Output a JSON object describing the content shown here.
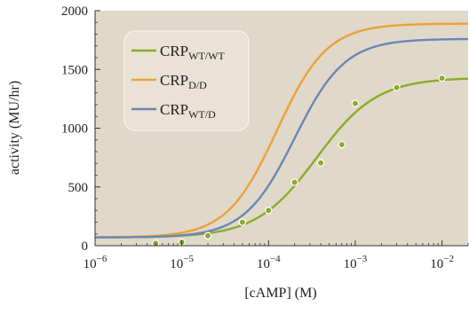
{
  "chart_data": {
    "type": "line",
    "xlabel": "[cAMP] (M)",
    "ylabel": "activity (MU/hr)",
    "x_scale": "log",
    "xlim": [
      1e-06,
      0.02
    ],
    "ylim": [
      0,
      2000
    ],
    "x_ticks": [
      1e-06,
      1e-05,
      0.0001,
      0.001,
      0.01
    ],
    "x_tick_labels": [
      {
        "base": "10",
        "exp": "−6"
      },
      {
        "base": "10",
        "exp": "−5"
      },
      {
        "base": "10",
        "exp": "−4"
      },
      {
        "base": "10",
        "exp": "−3"
      },
      {
        "base": "10",
        "exp": "−2"
      }
    ],
    "y_ticks": [
      0,
      500,
      1000,
      1500,
      2000
    ],
    "y_tick_labels": [
      "0",
      "500",
      "1000",
      "1500",
      "2000"
    ],
    "grid": false,
    "background": "#e0d8c8",
    "legend_position": "top-left",
    "series": [
      {
        "name_base": "CRP",
        "name_sub": "WT/WT",
        "color": "#8aac2c",
        "curve": {
          "bottom": 70,
          "top": 1430,
          "ec50": 0.00036,
          "hill": 1.25
        },
        "points": [
          {
            "x": 5e-06,
            "y": 20
          },
          {
            "x": 1e-05,
            "y": 30
          },
          {
            "x": 2e-05,
            "y": 85
          },
          {
            "x": 5e-05,
            "y": 200
          },
          {
            "x": 0.0001,
            "y": 300
          },
          {
            "x": 0.0002,
            "y": 540
          },
          {
            "x": 0.0004,
            "y": 705
          },
          {
            "x": 0.0007,
            "y": 860
          },
          {
            "x": 0.001,
            "y": 1210
          },
          {
            "x": 0.003,
            "y": 1345
          },
          {
            "x": 0.01,
            "y": 1425
          }
        ]
      },
      {
        "name_base": "CRP",
        "name_sub": "D/D",
        "color": "#e8a23a",
        "curve": {
          "bottom": 70,
          "top": 1890,
          "ec50": 0.000125,
          "hill": 1.5
        },
        "points": []
      },
      {
        "name_base": "CRP",
        "name_sub": "WT/D",
        "color": "#6a87b8",
        "curve": {
          "bottom": 70,
          "top": 1760,
          "ec50": 0.0002,
          "hill": 1.5
        },
        "points": []
      }
    ]
  }
}
